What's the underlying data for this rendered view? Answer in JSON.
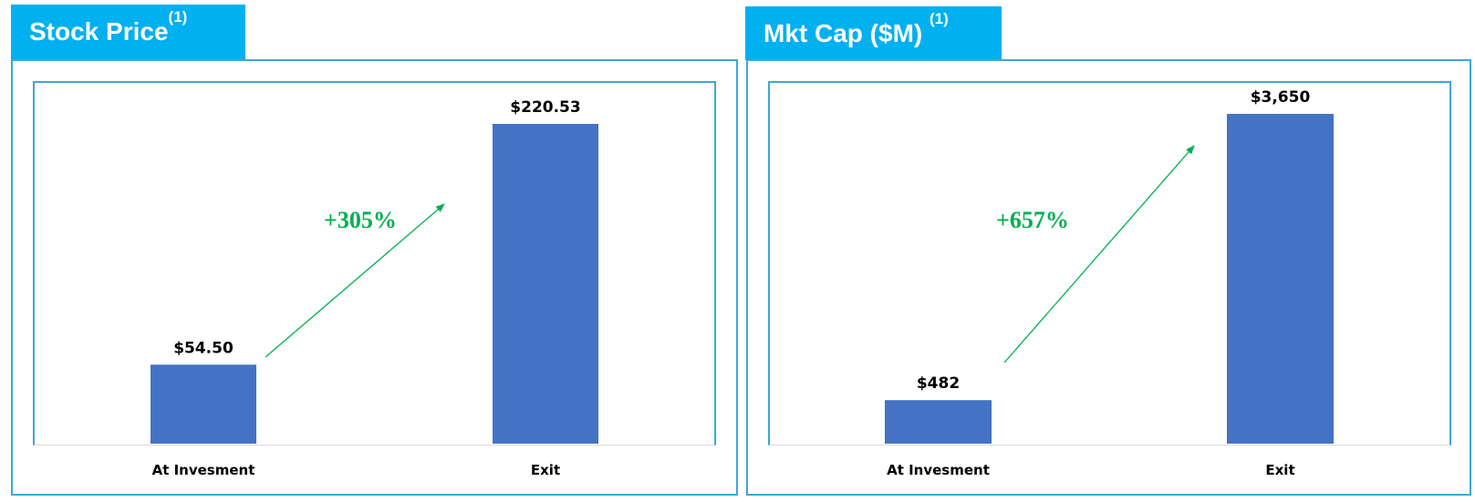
{
  "colors": {
    "header": "#00b0f0",
    "border": "#3aa9d6",
    "bar": "#4472c4",
    "growth": "#00b050"
  },
  "chart_data": [
    {
      "type": "bar",
      "title": "Stock Price",
      "title_sup": "(1)",
      "categories": [
        "At Invesment",
        "Exit"
      ],
      "values": [
        54.5,
        220.53
      ],
      "data_labels": [
        "$54.50",
        "$220.53"
      ],
      "annotation": "+305%",
      "ylim": [
        0,
        220.53
      ],
      "grid": false
    },
    {
      "type": "bar",
      "title": "Mkt Cap ($M)",
      "title_sup": "(1)",
      "categories": [
        "At Invesment",
        "Exit"
      ],
      "values": [
        482,
        3650
      ],
      "data_labels": [
        "$482",
        "$3,650"
      ],
      "annotation": "+657%",
      "ylim": [
        0,
        3650
      ],
      "grid": false
    }
  ]
}
